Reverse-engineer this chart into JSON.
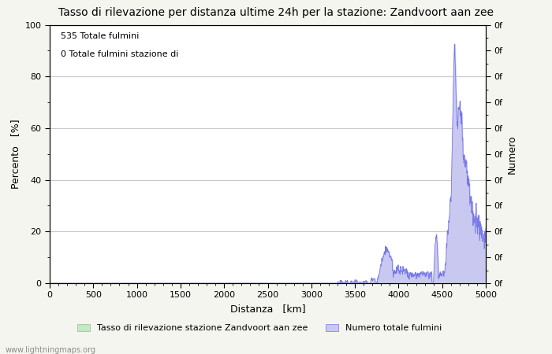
{
  "title": "Tasso di rilevazione per distanza ultime 24h per la stazione: Zandvoort aan zee",
  "xlabel": "Distanza   [km]",
  "ylabel_left": "Percento   [%]",
  "ylabel_right": "Numero",
  "annotation_line1": "535 Totale fulmini",
  "annotation_line2": "0 Totale fulmini stazione di",
  "watermark": "www.lightningmaps.org",
  "legend_label1": "Tasso di rilevazione stazione Zandvoort aan zee",
  "legend_label2": "Numero totale fulmini",
  "xlim": [
    0,
    5000
  ],
  "ylim_left": [
    0,
    100
  ],
  "x_ticks": [
    0,
    500,
    1000,
    1500,
    2000,
    2500,
    3000,
    3500,
    4000,
    4500,
    5000
  ],
  "y_ticks_left": [
    0,
    20,
    40,
    60,
    80,
    100
  ],
  "background_color": "#f5f5f0",
  "plot_bg_color": "#ffffff",
  "grid_color": "#c8c8c8",
  "line_color": "#7878e8",
  "fill_color": "#c8c8f0",
  "green_fill_color": "#c0ecc0",
  "title_fontsize": 10,
  "label_fontsize": 9,
  "tick_fontsize": 8,
  "annotation_fontsize": 8
}
